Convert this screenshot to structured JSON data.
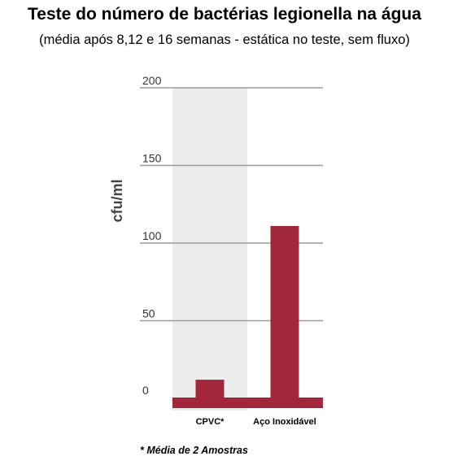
{
  "chart_data": {
    "type": "bar",
    "title": "Teste do número de bactérias legionella na água",
    "subtitle": "(média após 8,12 e 16 semanas - estática no teste, sem fluxo)",
    "ylabel": "cfu/ml",
    "xlabel": "",
    "categories": [
      "CPVC*",
      "Aço Inoxidável"
    ],
    "values": [
      12,
      111
    ],
    "ylim": [
      0,
      200
    ],
    "yticks": [
      0,
      50,
      100,
      150,
      200
    ],
    "grid": true,
    "highlighted_category": "CPVC*",
    "bar_color": "#a3273a",
    "highlight_color": "#ececec",
    "grid_color": "#999999",
    "footnote": "* Média de 2 Amostras"
  }
}
